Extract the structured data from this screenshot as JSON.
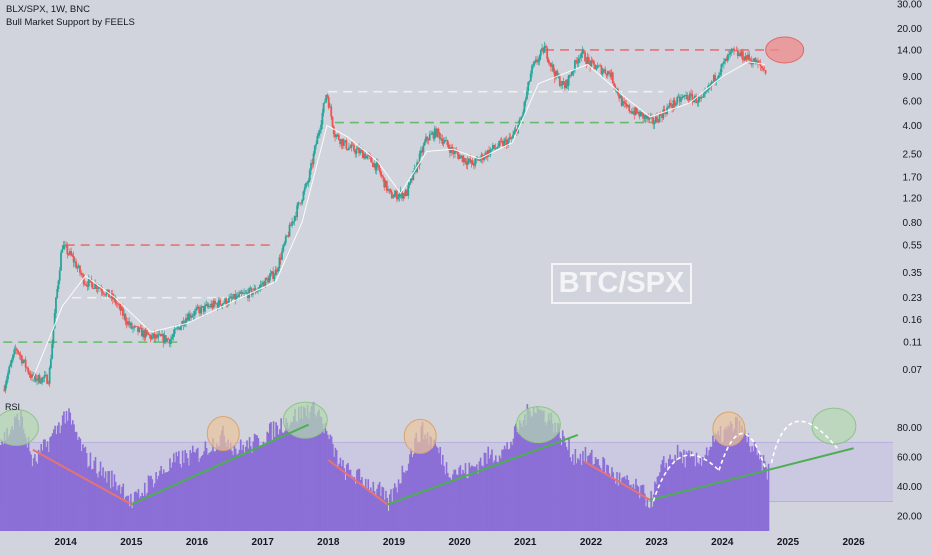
{
  "header": {
    "title": "BLX/SPX, 1W, BNC",
    "indicator": "Bull Market Support by FEELS"
  },
  "watermark": "BTC/SPX",
  "rsi_label": "RSI",
  "colors": {
    "background": "#d1d4dc",
    "candle_up": "#26a69a",
    "candle_down": "#ef5350",
    "bull_support": "#ffffff",
    "rsi_bars": "#8b6fd6",
    "rsi_band": "#c6bde6",
    "trend_up": "#4caf50",
    "trend_down": "#e57373",
    "level_red": "#e57373",
    "level_green": "#66bb6a",
    "level_white": "#f0f0f0",
    "circle_green": "#b3d9b0",
    "circle_orange": "#e9c49b",
    "circle_red": "#f08a8a"
  },
  "chart_data": [
    {
      "type": "candlestick",
      "title": "BLX/SPX, 1W, BNC",
      "scale": "log",
      "ylim": [
        0.045,
        30
      ],
      "xlim": [
        2013.0,
        2026.6
      ],
      "y_ticks": [
        "30.00",
        "20.00",
        "14.00",
        "9.00",
        "6.00",
        "4.00",
        "2.50",
        "1.70",
        "1.20",
        "0.80",
        "0.55",
        "0.35",
        "0.23",
        "0.16",
        "0.11",
        "0.07"
      ],
      "x_ticks": [
        "2014",
        "2015",
        "2016",
        "2017",
        "2018",
        "2019",
        "2020",
        "2021",
        "2022",
        "2023",
        "2024",
        "2025",
        "2026"
      ],
      "price_path": [
        [
          2013.05,
          0.05
        ],
        [
          2013.25,
          0.1
        ],
        [
          2013.5,
          0.06
        ],
        [
          2013.75,
          0.06
        ],
        [
          2013.85,
          0.2
        ],
        [
          2013.95,
          0.55
        ],
        [
          2014.1,
          0.45
        ],
        [
          2014.3,
          0.3
        ],
        [
          2014.5,
          0.28
        ],
        [
          2014.75,
          0.22
        ],
        [
          2015.0,
          0.14
        ],
        [
          2015.3,
          0.12
        ],
        [
          2015.6,
          0.115
        ],
        [
          2015.85,
          0.17
        ],
        [
          2016.2,
          0.2
        ],
        [
          2016.5,
          0.22
        ],
        [
          2016.9,
          0.26
        ],
        [
          2017.2,
          0.35
        ],
        [
          2017.45,
          0.8
        ],
        [
          2017.7,
          1.6
        ],
        [
          2017.9,
          4.5
        ],
        [
          2017.98,
          7.0
        ],
        [
          2018.1,
          3.5
        ],
        [
          2018.3,
          2.8
        ],
        [
          2018.55,
          2.5
        ],
        [
          2018.75,
          2.0
        ],
        [
          2018.95,
          1.25
        ],
        [
          2019.2,
          1.3
        ],
        [
          2019.5,
          3.2
        ],
        [
          2019.65,
          3.6
        ],
        [
          2019.9,
          2.6
        ],
        [
          2020.2,
          2.1
        ],
        [
          2020.5,
          2.7
        ],
        [
          2020.8,
          3.2
        ],
        [
          2020.95,
          4.5
        ],
        [
          2021.1,
          10
        ],
        [
          2021.3,
          14.5
        ],
        [
          2021.45,
          9.5
        ],
        [
          2021.6,
          7.5
        ],
        [
          2021.85,
          13.5
        ],
        [
          2022.0,
          11
        ],
        [
          2022.3,
          9.5
        ],
        [
          2022.5,
          5.5
        ],
        [
          2022.75,
          4.8
        ],
        [
          2022.95,
          4.2
        ],
        [
          2023.2,
          5.5
        ],
        [
          2023.45,
          6.5
        ],
        [
          2023.7,
          6.0
        ],
        [
          2023.9,
          9.0
        ],
        [
          2024.15,
          13.5
        ],
        [
          2024.35,
          12.5
        ],
        [
          2024.5,
          11.5
        ],
        [
          2024.65,
          10
        ]
      ],
      "bull_support_path": [
        [
          2013.5,
          0.06
        ],
        [
          2013.95,
          0.2
        ],
        [
          2014.3,
          0.33
        ],
        [
          2014.75,
          0.23
        ],
        [
          2015.3,
          0.13
        ],
        [
          2015.85,
          0.15
        ],
        [
          2016.5,
          0.21
        ],
        [
          2017.2,
          0.3
        ],
        [
          2017.6,
          0.8
        ],
        [
          2017.98,
          4.0
        ],
        [
          2018.3,
          3.3
        ],
        [
          2018.75,
          2.2
        ],
        [
          2019.1,
          1.3
        ],
        [
          2019.5,
          2.6
        ],
        [
          2019.9,
          2.7
        ],
        [
          2020.3,
          2.3
        ],
        [
          2020.8,
          3.0
        ],
        [
          2021.2,
          8.0
        ],
        [
          2021.6,
          9.5
        ],
        [
          2021.95,
          11
        ],
        [
          2022.5,
          6.5
        ],
        [
          2022.9,
          4.6
        ],
        [
          2023.5,
          5.8
        ],
        [
          2024.0,
          9.0
        ],
        [
          2024.4,
          11.5
        ],
        [
          2024.65,
          11
        ]
      ],
      "levels": [
        {
          "price": 14.0,
          "from": 2021.3,
          "to": 2024.95,
          "color": "red"
        },
        {
          "price": 7.0,
          "from": 2018.0,
          "to": 2023.1,
          "color": "white"
        },
        {
          "price": 4.2,
          "from": 2018.1,
          "to": 2022.95,
          "color": "green"
        },
        {
          "price": 0.55,
          "from": 2014.0,
          "to": 2017.2,
          "color": "red"
        },
        {
          "price": 0.23,
          "from": 2014.1,
          "to": 2016.5,
          "color": "white"
        },
        {
          "price": 0.11,
          "from": 2013.05,
          "to": 2015.7,
          "color": "green"
        }
      ],
      "annotations": [
        {
          "type": "ellipse",
          "color": "red",
          "x": 2024.95,
          "y": 14.0
        }
      ]
    },
    {
      "type": "bar",
      "title": "RSI",
      "ylim": [
        10,
        100
      ],
      "y_ticks": [
        "80.00",
        "60.00",
        "40.00",
        "20.00"
      ],
      "band": [
        30,
        70
      ],
      "rsi_path": [
        [
          2013.0,
          70
        ],
        [
          2013.3,
          88
        ],
        [
          2013.5,
          55
        ],
        [
          2013.8,
          75
        ],
        [
          2014.0,
          90
        ],
        [
          2014.3,
          60
        ],
        [
          2014.6,
          48
        ],
        [
          2014.9,
          38
        ],
        [
          2015.0,
          28
        ],
        [
          2015.3,
          45
        ],
        [
          2015.7,
          58
        ],
        [
          2016.0,
          62
        ],
        [
          2016.4,
          75
        ],
        [
          2016.6,
          65
        ],
        [
          2016.9,
          70
        ],
        [
          2017.2,
          80
        ],
        [
          2017.5,
          88
        ],
        [
          2017.8,
          95
        ],
        [
          2018.0,
          72
        ],
        [
          2018.2,
          52
        ],
        [
          2018.5,
          45
        ],
        [
          2018.75,
          38
        ],
        [
          2018.9,
          28
        ],
        [
          2019.1,
          48
        ],
        [
          2019.4,
          78
        ],
        [
          2019.6,
          70
        ],
        [
          2019.8,
          52
        ],
        [
          2020.1,
          50
        ],
        [
          2020.4,
          60
        ],
        [
          2020.7,
          65
        ],
        [
          2020.9,
          80
        ],
        [
          2021.1,
          95
        ],
        [
          2021.4,
          85
        ],
        [
          2021.7,
          62
        ],
        [
          2021.9,
          60
        ],
        [
          2022.1,
          58
        ],
        [
          2022.4,
          45
        ],
        [
          2022.7,
          38
        ],
        [
          2022.9,
          30
        ],
        [
          2023.1,
          55
        ],
        [
          2023.3,
          62
        ],
        [
          2023.6,
          56
        ],
        [
          2023.9,
          72
        ],
        [
          2024.2,
          82
        ],
        [
          2024.4,
          70
        ],
        [
          2024.55,
          58
        ],
        [
          2024.7,
          50
        ]
      ],
      "trendlines": [
        {
          "color": "down",
          "points": [
            [
              2013.5,
              65
            ],
            [
              2015.0,
              28
            ]
          ]
        },
        {
          "color": "up",
          "points": [
            [
              2015.0,
              28
            ],
            [
              2017.7,
              82
            ]
          ]
        },
        {
          "color": "down",
          "points": [
            [
              2018.0,
              58
            ],
            [
              2018.9,
              28
            ]
          ]
        },
        {
          "color": "up",
          "points": [
            [
              2018.9,
              28
            ],
            [
              2021.8,
              75
            ]
          ]
        },
        {
          "color": "down",
          "points": [
            [
              2021.9,
              57
            ],
            [
              2022.9,
              31
            ]
          ]
        },
        {
          "color": "up",
          "points": [
            [
              2022.9,
              31
            ],
            [
              2026.0,
              66
            ]
          ]
        }
      ],
      "projection_arcs": [
        {
          "from": [
            2022.95,
            30
          ],
          "peak": [
            2023.3,
            60
          ],
          "to": [
            2023.95,
            51
          ]
        },
        {
          "from": [
            2023.95,
            51
          ],
          "peak": [
            2024.3,
            76
          ],
          "to": [
            2024.65,
            53
          ]
        },
        {
          "from": [
            2024.75,
            56
          ],
          "peak": [
            2025.0,
            84
          ],
          "to": [
            2025.75,
            66
          ]
        }
      ],
      "circles": [
        {
          "color": "green",
          "x": 2013.25,
          "y": 80
        },
        {
          "color": "orange",
          "x": 2016.4,
          "y": 76
        },
        {
          "color": "green",
          "x": 2017.65,
          "y": 85
        },
        {
          "color": "orange",
          "x": 2019.4,
          "y": 74
        },
        {
          "color": "green",
          "x": 2021.2,
          "y": 82
        },
        {
          "color": "orange",
          "x": 2024.1,
          "y": 79
        },
        {
          "color": "green",
          "x": 2025.7,
          "y": 81
        }
      ]
    }
  ]
}
